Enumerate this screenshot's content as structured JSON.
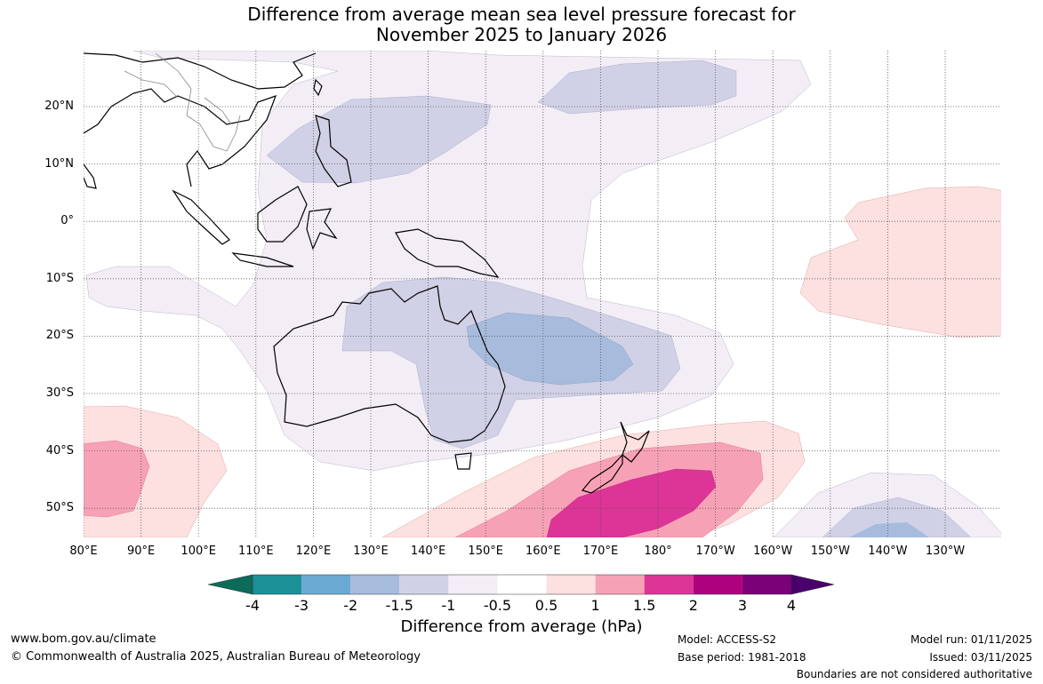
{
  "title_line1": "Difference from average mean sea level pressure forecast for",
  "title_line2": "November 2025 to January 2026",
  "latitudes": [
    "20°N",
    "10°N",
    "0°",
    "10°S",
    "20°S",
    "30°S",
    "40°S",
    "50°S"
  ],
  "longitudes": [
    "80°E",
    "90°E",
    "100°E",
    "110°E",
    "120°E",
    "130°E",
    "140°E",
    "150°E",
    "160°E",
    "170°E",
    "180°",
    "170°W",
    "160°W",
    "150°W",
    "140°W",
    "130°W"
  ],
  "colorbar": {
    "ticks": [
      "-4",
      "-3",
      "-2",
      "-1.5",
      "-1",
      "-0.5",
      "0.5",
      "1",
      "1.5",
      "2",
      "3",
      "4"
    ],
    "colors": [
      "#0d6b5a",
      "#1b9096",
      "#6aaad2",
      "#a7bbdc",
      "#d0d1e6",
      "#f3edf6",
      "#ffffff",
      "#fde0e0",
      "#f7a1b7",
      "#dd3497",
      "#ae017e",
      "#7a0177",
      "#49006a"
    ],
    "label": "Difference from average (hPa)"
  },
  "footer": {
    "website": "www.bom.gov.au/climate",
    "copyright": "© Commonwealth of Australia 2025, Australian Bureau of Meteorology",
    "model": "Model: ACCESS-S2",
    "base_period": "Base period: 1981-2018",
    "model_run": "Model run: 01/11/2025",
    "issued": "Issued: 03/11/2025",
    "disclaimer": "Boundaries are not considered authoritative"
  }
}
